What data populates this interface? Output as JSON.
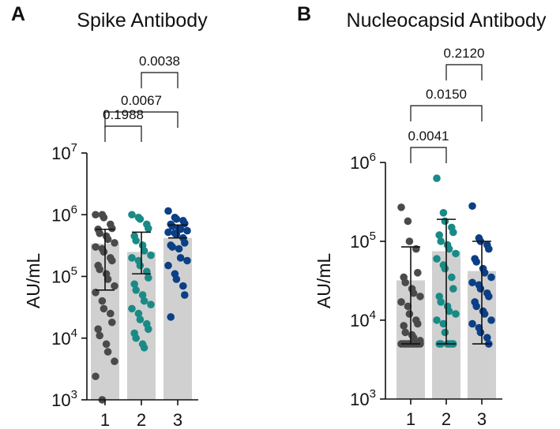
{
  "colors": {
    "group1": "#4a4a4a",
    "group2": "#1a8a86",
    "group3": "#0b3f86",
    "bar": "#d0d0d0",
    "axis": "#111111"
  },
  "chart_data": [
    {
      "panel_label": "A",
      "type": "bar",
      "subtype": "scatter-dot-plot-on-bar-with-error-bars",
      "title": "Spike Antibody",
      "ylabel": "AU/mL",
      "xlabel": "",
      "scale": "log10",
      "ylim": [
        1000,
        10000000
      ],
      "yticks": [
        {
          "base": "10",
          "exp": "3"
        },
        {
          "base": "10",
          "exp": "4"
        },
        {
          "base": "10",
          "exp": "5"
        },
        {
          "base": "10",
          "exp": "6"
        },
        {
          "base": "10",
          "exp": "7"
        }
      ],
      "categories": [
        "1",
        "2",
        "3"
      ],
      "bars": [
        {
          "category": "1",
          "value": 340000,
          "err_low": 60000,
          "err_high": 580000
        },
        {
          "category": "2",
          "value": 250000,
          "err_low": 110000,
          "err_high": 520000
        },
        {
          "category": "3",
          "value": 420000,
          "err_low": 420000,
          "err_high": 680000
        }
      ],
      "points": [
        [
          1000000,
          1000000,
          900000,
          700000,
          600000,
          580000,
          500000,
          450000,
          400000,
          350000,
          300000,
          280000,
          250000,
          200000,
          180000,
          150000,
          130000,
          110000,
          90000,
          70000,
          55000,
          40000,
          30000,
          25000,
          18000,
          14000,
          11000,
          8000,
          6000,
          4200,
          2400,
          1000
        ],
        [
          1000000,
          900000,
          850000,
          700000,
          600000,
          450000,
          380000,
          320000,
          260000,
          220000,
          200000,
          180000,
          150000,
          120000,
          95000,
          75000,
          60000,
          50000,
          40000,
          35000,
          30000,
          25000,
          20000,
          17000,
          14000,
          12000,
          10000,
          8000,
          7000
        ],
        [
          1150000,
          900000,
          850000,
          800000,
          720000,
          700000,
          650000,
          600000,
          580000,
          550000,
          520000,
          500000,
          480000,
          420000,
          350000,
          320000,
          300000,
          280000,
          200000,
          180000,
          150000,
          110000,
          90000,
          70000,
          50000,
          22000
        ]
      ],
      "comparisons": [
        {
          "from": "1",
          "to": "2",
          "p": "0.1988"
        },
        {
          "from": "2",
          "to": "3",
          "p": "0.0038"
        },
        {
          "from": "1",
          "to": "3",
          "p": "0.0067"
        }
      ]
    },
    {
      "panel_label": "B",
      "type": "bar",
      "subtype": "scatter-dot-plot-on-bar-with-error-bars",
      "title": "Nucleocapsid Antibody",
      "ylabel": "AU/mL",
      "xlabel": "",
      "scale": "log10",
      "ylim": [
        1000,
        1000000
      ],
      "yticks": [
        {
          "base": "10",
          "exp": "3"
        },
        {
          "base": "10",
          "exp": "4"
        },
        {
          "base": "10",
          "exp": "5"
        },
        {
          "base": "10",
          "exp": "6"
        }
      ],
      "categories": [
        "1",
        "2",
        "3"
      ],
      "bars": [
        {
          "category": "1",
          "value": 32000,
          "err_low": 5000,
          "err_high": 85000
        },
        {
          "category": "2",
          "value": 75000,
          "err_low": 5000,
          "err_high": 190000
        },
        {
          "category": "3",
          "value": 42000,
          "err_low": 5000,
          "err_high": 100000
        }
      ],
      "points": [
        [
          270000,
          180000,
          100000,
          80000,
          40000,
          35000,
          30000,
          25000,
          22000,
          20000,
          17000,
          15000,
          12000,
          10000,
          9000,
          8500,
          7000,
          6500,
          6000,
          5500,
          5000,
          5000,
          5000,
          5000,
          5000,
          5000,
          5000,
          5000,
          5000,
          5000
        ],
        [
          630000,
          230000,
          180000,
          150000,
          130000,
          120000,
          100000,
          90000,
          80000,
          70000,
          60000,
          50000,
          45000,
          35000,
          25000,
          20000,
          17000,
          15000,
          13000,
          12000,
          10000,
          9000,
          7000,
          5000,
          5000,
          5000,
          5000,
          5000,
          5000
        ],
        [
          280000,
          110000,
          100000,
          90000,
          80000,
          60000,
          55000,
          45000,
          40000,
          35000,
          30000,
          28000,
          25000,
          22000,
          20000,
          17000,
          15000,
          13000,
          12000,
          10000,
          9000,
          8000,
          7000,
          6000,
          5000
        ]
      ],
      "comparisons": [
        {
          "from": "1",
          "to": "2",
          "p": "0.0041"
        },
        {
          "from": "2",
          "to": "3",
          "p": "0.2120"
        },
        {
          "from": "1",
          "to": "3",
          "p": "0.0150"
        }
      ]
    }
  ]
}
